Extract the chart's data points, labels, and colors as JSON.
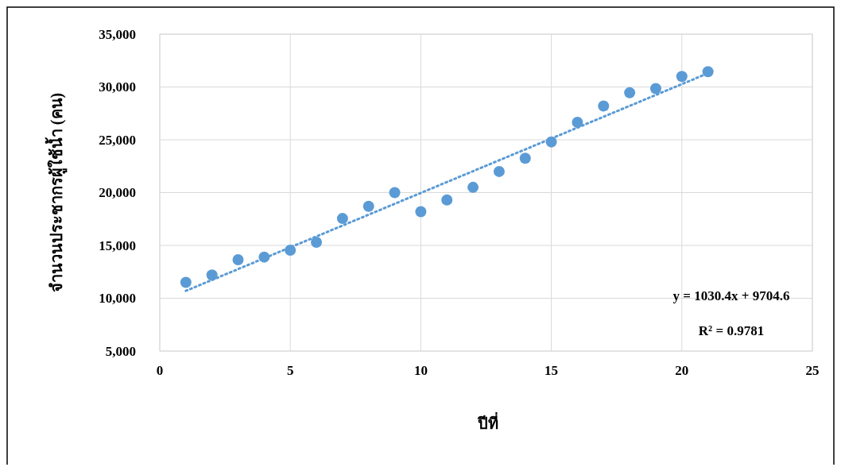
{
  "chart_data": {
    "type": "scatter",
    "xlabel": "ปีที่",
    "ylabel": "จำนวนประชากรผู้ใช้น้ำ (คน)",
    "xlim": [
      0,
      25
    ],
    "xticks": [
      0,
      5,
      10,
      15,
      20,
      25
    ],
    "ylim": [
      5000,
      35000
    ],
    "yticks": [
      {
        "value": 5000,
        "label": "5,000"
      },
      {
        "value": 10000,
        "label": "10,000"
      },
      {
        "value": 15000,
        "label": "15,000"
      },
      {
        "value": 20000,
        "label": "20,000"
      },
      {
        "value": 25000,
        "label": "25,000"
      },
      {
        "value": 30000,
        "label": "30,000"
      },
      {
        "value": 35000,
        "label": "35,000"
      }
    ],
    "grid": true,
    "series": [
      {
        "marker": "circle",
        "color": "#5b9bd5",
        "x": [
          1,
          2,
          3,
          4,
          5,
          6,
          7,
          8,
          9,
          10,
          11,
          12,
          13,
          14,
          15,
          16,
          17,
          18,
          19,
          20,
          21
        ],
        "values": [
          11500,
          12200,
          13650,
          13900,
          14550,
          15300,
          17550,
          18700,
          20000,
          18200,
          19300,
          20500,
          22000,
          23250,
          24800,
          26650,
          28200,
          29450,
          29850,
          31000,
          31450
        ]
      },
      {
        "type": "line",
        "color": "#5b9bd5",
        "line_style": "dotted",
        "x": [
          1,
          21
        ],
        "values": [
          10700,
          31300
        ]
      }
    ],
    "annotations": [
      "y = 1030.4x + 9704.6",
      "R² = 0.9781"
    ]
  }
}
